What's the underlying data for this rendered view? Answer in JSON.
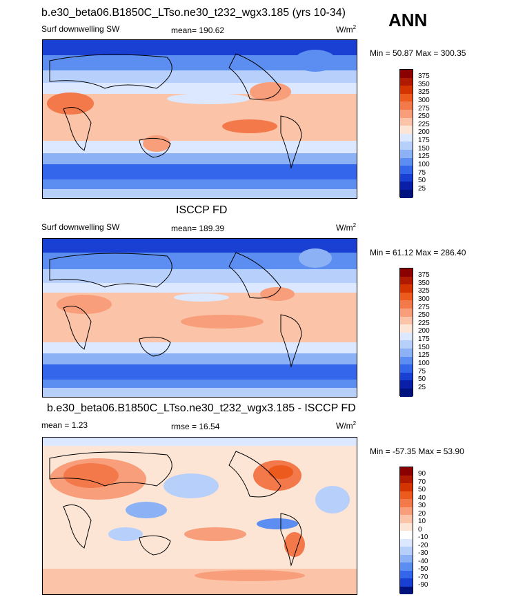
{
  "season": "ANN",
  "panels": [
    {
      "title": "b.e30_beta06.B1850C_LTso.ne30_t232_wgx3.185 (yrs 10-34)",
      "left_label": "Surf downwelling SW",
      "center_label": "mean= 190.62",
      "units": "W/m",
      "units_exp": "2",
      "minmax": "Min =  50.87 Max = 300.35",
      "colorbar": {
        "ticks": [
          "375",
          "350",
          "325",
          "300",
          "275",
          "250",
          "225",
          "200",
          "175",
          "150",
          "125",
          "100",
          "75",
          "50",
          "25"
        ],
        "colors": [
          "#8b0000",
          "#b01a00",
          "#d43500",
          "#ec5a1e",
          "#f4794a",
          "#f89e7a",
          "#fbc3a7",
          "#fde5d6",
          "#dbe8ff",
          "#b7cffb",
          "#8cb2f5",
          "#5b8ef0",
          "#3366ea",
          "#1a3fd3",
          "#0a1fa8",
          "#00127e"
        ]
      }
    },
    {
      "title": "ISCCP FD",
      "left_label": "Surf downwelling SW",
      "center_label": "mean= 189.39",
      "units": "W/m",
      "units_exp": "2",
      "minmax": "Min =  61.12 Max = 286.40",
      "colorbar": {
        "ticks": [
          "375",
          "350",
          "325",
          "300",
          "275",
          "250",
          "225",
          "200",
          "175",
          "150",
          "125",
          "100",
          "75",
          "50",
          "25"
        ],
        "colors": [
          "#8b0000",
          "#b01a00",
          "#d43500",
          "#ec5a1e",
          "#f4794a",
          "#f89e7a",
          "#fbc3a7",
          "#fde5d6",
          "#dbe8ff",
          "#b7cffb",
          "#8cb2f5",
          "#5b8ef0",
          "#3366ea",
          "#1a3fd3",
          "#0a1fa8",
          "#00127e"
        ]
      }
    },
    {
      "title": "b.e30_beta06.B1850C_LTso.ne30_t232_wgx3.185 - ISCCP FD",
      "left_label": "mean =   1.23",
      "center_label": "rmse =  16.54",
      "units": "W/m",
      "units_exp": "2",
      "minmax": "Min = -57.35 Max =  53.90",
      "colorbar": {
        "ticks": [
          "90",
          "70",
          "50",
          "40",
          "30",
          "20",
          "10",
          "0",
          "-10",
          "-20",
          "-30",
          "-40",
          "-50",
          "-70",
          "-90"
        ],
        "colors": [
          "#8b0000",
          "#b01a00",
          "#d43500",
          "#ec5a1e",
          "#f4794a",
          "#f89e7a",
          "#fbc3a7",
          "#fde5d6",
          "#ffffff",
          "#dbe8ff",
          "#b7cffb",
          "#8cb2f5",
          "#5b8ef0",
          "#3366ea",
          "#1a3fd3",
          "#00127e"
        ]
      }
    }
  ],
  "chart_data": [
    {
      "type": "heatmap",
      "title": "b.e30_beta06.B1850C_LTso.ne30_t232_wgx3.185 (yrs 10-34)",
      "variable": "Surf downwelling SW",
      "units": "W/m2",
      "mean": 190.62,
      "min": 50.87,
      "max": 300.35,
      "levels": [
        25,
        50,
        75,
        100,
        125,
        150,
        175,
        200,
        225,
        250,
        275,
        300,
        325,
        350,
        375
      ]
    },
    {
      "type": "heatmap",
      "title": "ISCCP FD",
      "variable": "Surf downwelling SW",
      "units": "W/m2",
      "mean": 189.39,
      "min": 61.12,
      "max": 286.4,
      "levels": [
        25,
        50,
        75,
        100,
        125,
        150,
        175,
        200,
        225,
        250,
        275,
        300,
        325,
        350,
        375
      ]
    },
    {
      "type": "heatmap",
      "title": "b.e30_beta06.B1850C_LTso.ne30_t232_wgx3.185 - ISCCP FD",
      "units": "W/m2",
      "mean": 1.23,
      "rmse": 16.54,
      "min": -57.35,
      "max": 53.9,
      "levels": [
        -90,
        -70,
        -50,
        -40,
        -30,
        -20,
        -10,
        0,
        10,
        20,
        30,
        40,
        50,
        70,
        90
      ]
    }
  ]
}
